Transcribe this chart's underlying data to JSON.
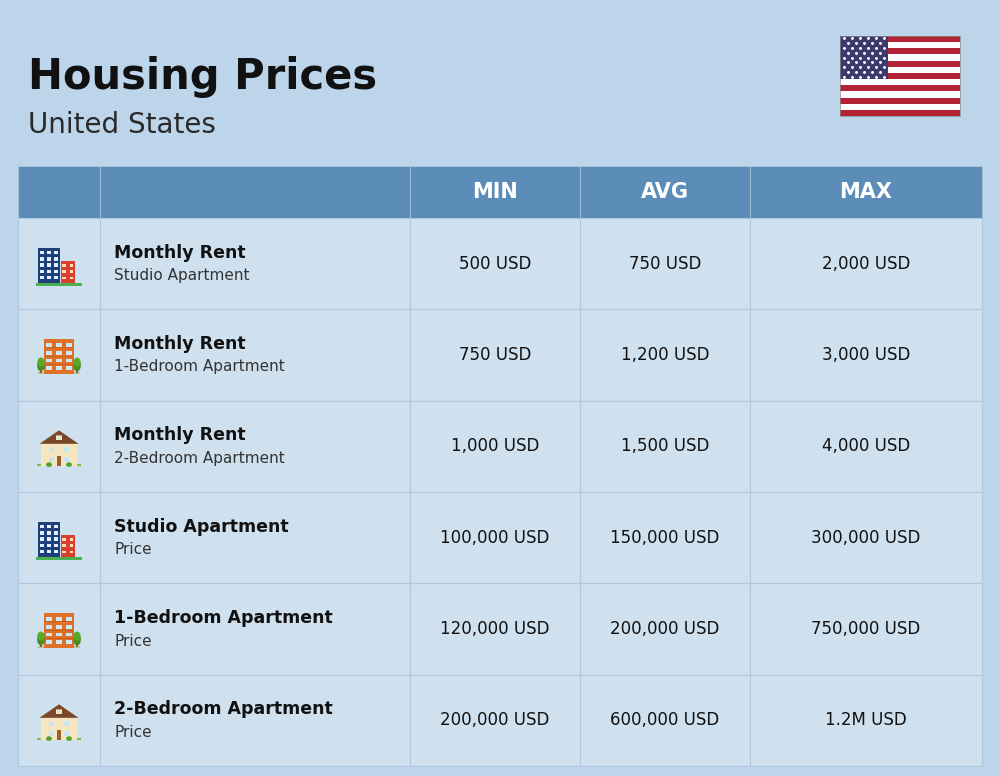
{
  "title": "Housing Prices",
  "subtitle": "United States",
  "bg_color": "#bdd5ea",
  "header_bg": "#5b8db8",
  "header_text_color": "#ffffff",
  "header_labels": [
    "MIN",
    "AVG",
    "MAX"
  ],
  "row_bg": "#cfe0ef",
  "cell_border": "#aec8de",
  "rows": [
    {
      "label_bold": "Monthly Rent",
      "label_sub": "Studio Apartment",
      "min": "500 USD",
      "avg": "750 USD",
      "max": "2,000 USD",
      "icon": "office_blue"
    },
    {
      "label_bold": "Monthly Rent",
      "label_sub": "1-Bedroom Apartment",
      "min": "750 USD",
      "avg": "1,200 USD",
      "max": "3,000 USD",
      "icon": "apartment_orange"
    },
    {
      "label_bold": "Monthly Rent",
      "label_sub": "2-Bedroom Apartment",
      "min": "1,000 USD",
      "avg": "1,500 USD",
      "max": "4,000 USD",
      "icon": "house_beige"
    },
    {
      "label_bold": "Studio Apartment",
      "label_sub": "Price",
      "min": "100,000 USD",
      "avg": "150,000 USD",
      "max": "300,000 USD",
      "icon": "office_blue"
    },
    {
      "label_bold": "1-Bedroom Apartment",
      "label_sub": "Price",
      "min": "120,000 USD",
      "avg": "200,000 USD",
      "max": "750,000 USD",
      "icon": "apartment_orange"
    },
    {
      "label_bold": "2-Bedroom Apartment",
      "label_sub": "Price",
      "min": "200,000 USD",
      "avg": "600,000 USD",
      "max": "1.2M USD",
      "icon": "house_beige"
    }
  ],
  "flag_stripes": [
    "#B22234",
    "#FFFFFF",
    "#B22234",
    "#FFFFFF",
    "#B22234",
    "#FFFFFF",
    "#B22234",
    "#FFFFFF",
    "#B22234",
    "#FFFFFF",
    "#B22234",
    "#FFFFFF",
    "#B22234"
  ],
  "flag_canton": "#3C3B6E"
}
